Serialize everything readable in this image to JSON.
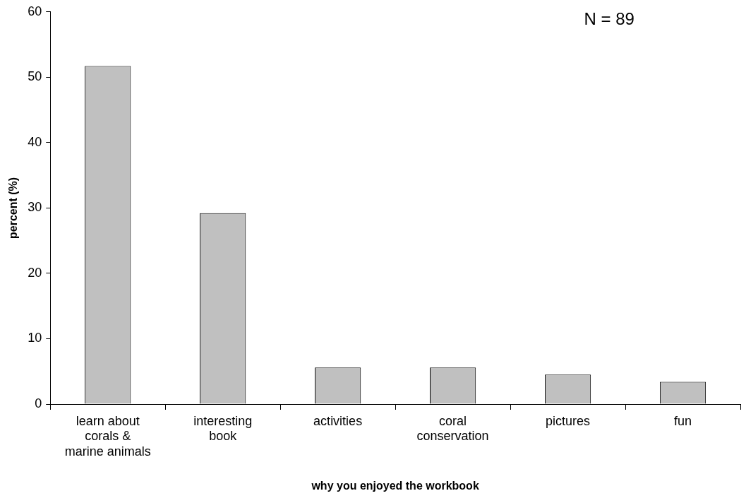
{
  "chart_data": {
    "type": "bar",
    "xlabel": "why you enjoyed the workbook",
    "ylabel": "percent (%)",
    "categories": [
      "learn about corals & marine animals",
      "interesting book",
      "activities",
      "coral conservation",
      "pictures",
      "fun"
    ],
    "values": [
      51.7,
      29.2,
      5.6,
      5.6,
      4.5,
      3.4
    ],
    "color": "#c0c0c0",
    "ylim": [
      0,
      60
    ],
    "yticks": [
      0,
      10,
      20,
      30,
      40,
      50,
      60
    ],
    "grid": false,
    "legend": false,
    "annotations": [
      "N = 89"
    ]
  }
}
